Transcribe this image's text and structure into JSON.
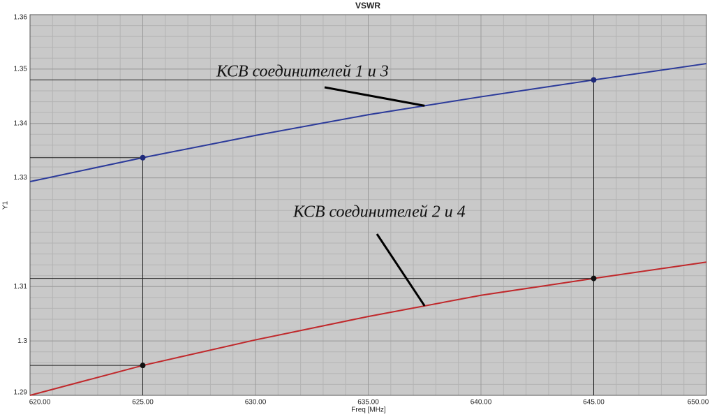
{
  "chart_data": {
    "type": "line",
    "title": "VSWR",
    "x_label": "Freq [MHz]",
    "y_label": "Y1",
    "x": [
      620,
      625,
      630,
      635,
      640,
      645,
      650
    ],
    "series": [
      {
        "name": "КСВ соединителей 1 и 3",
        "color": "#2b3a9a",
        "values": [
          1.3293,
          1.3337,
          1.3378,
          1.3416,
          1.3449,
          1.348,
          1.351
        ],
        "marker_x": [
          625,
          645
        ],
        "marker_y": [
          1.3337,
          1.348
        ]
      },
      {
        "name": "КСВ соединителей 2 и 4",
        "color": "#c0282b",
        "values": [
          1.29,
          1.2955,
          1.3002,
          1.3045,
          1.3084,
          1.3115,
          1.3145
        ],
        "marker_x": [
          625,
          645
        ],
        "marker_y": [
          1.2955,
          1.3115
        ]
      }
    ],
    "xlim": [
      620,
      650
    ],
    "xticks": [
      {
        "value": 620,
        "label": "620.00"
      },
      {
        "value": 625,
        "label": "625.00"
      },
      {
        "value": 630,
        "label": "630.00"
      },
      {
        "value": 635,
        "label": "635.00"
      },
      {
        "value": 640,
        "label": "640.00"
      },
      {
        "value": 645,
        "label": "645.00"
      },
      {
        "value": 650,
        "label": "650.00"
      }
    ],
    "ylim": [
      1.29,
      1.36
    ],
    "yticks": [
      1.29,
      1.3,
      1.31,
      1.33,
      1.34,
      1.35,
      1.36
    ],
    "grid": true,
    "plot_background": "#c9c9c9"
  }
}
